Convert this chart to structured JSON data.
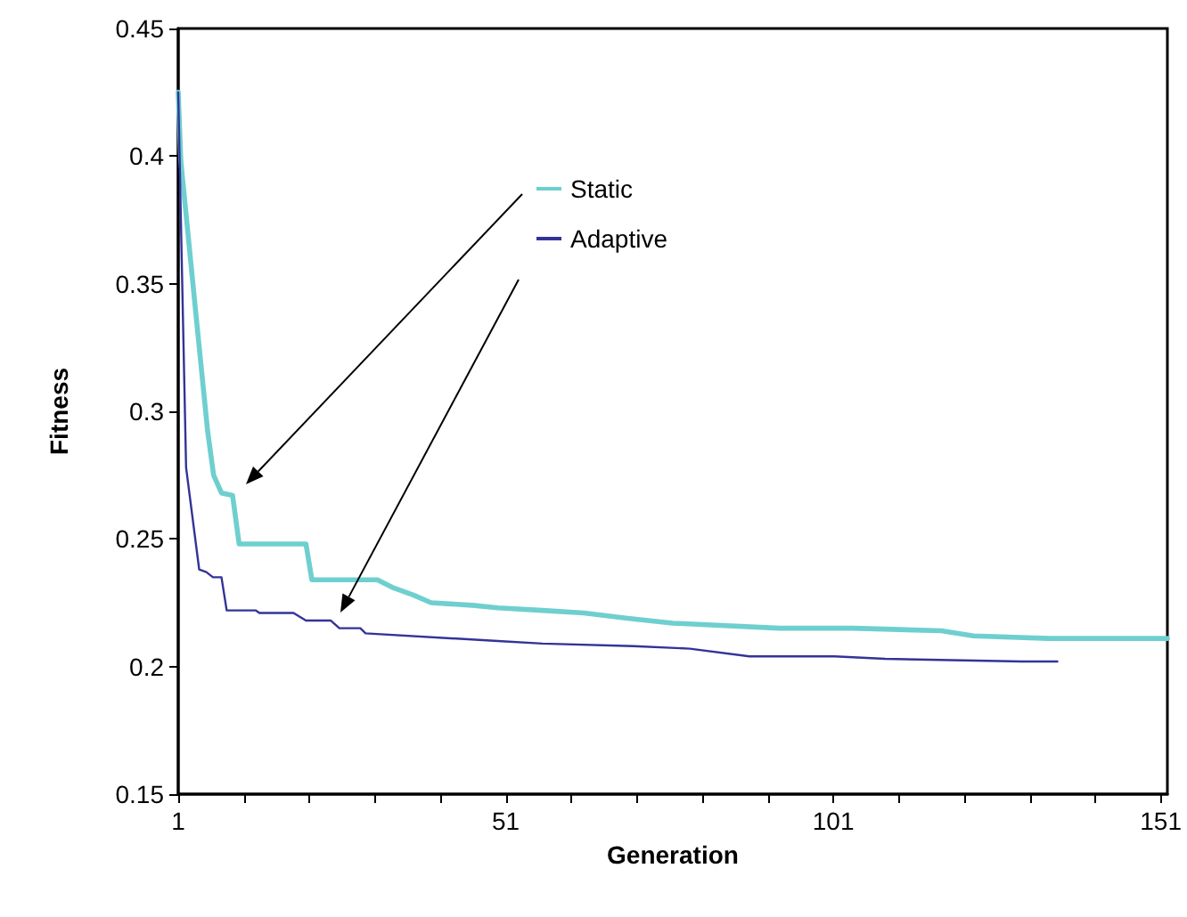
{
  "chart_data": {
    "type": "line",
    "xlabel": "Generation",
    "ylabel": "Fitness",
    "xlim": [
      1,
      152
    ],
    "xticks": [
      1,
      {
        "value": 11,
        "label": null
      },
      {
        "value": 21,
        "label": null
      },
      {
        "value": 31,
        "label": null
      },
      {
        "value": 41,
        "label": null
      },
      51,
      {
        "value": 61,
        "label": null
      },
      {
        "value": 71,
        "label": null
      },
      {
        "value": 81,
        "label": null
      },
      {
        "value": 91,
        "label": null
      },
      101,
      {
        "value": 111,
        "label": null
      },
      {
        "value": 121,
        "label": null
      },
      {
        "value": 131,
        "label": null
      },
      {
        "value": 141,
        "label": null
      },
      151
    ],
    "ylim": [
      0.15,
      0.45
    ],
    "yticks": [
      0.15,
      0.2,
      0.25,
      0.3,
      0.35,
      0.4,
      0.45
    ],
    "legend": "top",
    "marker": "none",
    "line_style": "solid",
    "series": [
      {
        "name": "Static",
        "color": "#6fcfcf",
        "x": [
          1,
          1.4,
          3.7,
          5.5,
          6.4,
          7.6,
          9.3,
          10.3,
          20.5,
          21.4,
          31.4,
          33.7,
          36.9,
          39.6,
          45.9,
          49.8,
          56.6,
          62.9,
          69.3,
          76.5,
          92.8,
          104,
          117.5,
          122.4,
          133.8,
          142.4,
          152
        ],
        "values": [
          0.425,
          0.398,
          0.338,
          0.292,
          0.275,
          0.268,
          0.267,
          0.248,
          0.248,
          0.234,
          0.234,
          0.231,
          0.228,
          0.225,
          0.224,
          0.223,
          0.222,
          0.221,
          0.219,
          0.217,
          0.215,
          0.215,
          0.214,
          0.212,
          0.211,
          0.211,
          0.211
        ]
      },
      {
        "name": "Adaptive",
        "color": "#333399",
        "x": [
          1,
          2.2,
          4.2,
          5.3,
          6.3,
          7.6,
          8.4,
          12.8,
          13.4,
          18.6,
          20.5,
          24.3,
          25.6,
          28.8,
          29.6,
          49.8,
          56.6,
          70.5,
          79.1,
          88.2,
          101.2,
          108.9,
          129.8,
          135.2
        ],
        "values": [
          0.425,
          0.278,
          0.238,
          0.237,
          0.235,
          0.235,
          0.222,
          0.222,
          0.221,
          0.221,
          0.218,
          0.218,
          0.215,
          0.215,
          0.213,
          0.21,
          0.209,
          0.208,
          0.207,
          0.204,
          0.204,
          0.203,
          0.202,
          0.202
        ]
      }
    ]
  }
}
